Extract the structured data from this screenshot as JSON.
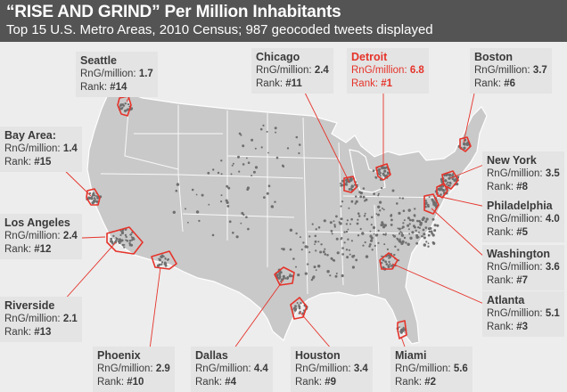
{
  "header": {
    "title": "“RISE AND GRIND” Per Million Inhabitants",
    "subtitle": "Top 15 U.S. Metro Areas, 2010 Census; 987 geocoded tweets displayed"
  },
  "labels": [
    {
      "id": "seattle",
      "city": "Seattle",
      "metric_label": "RnG/million:",
      "metric": "1.7",
      "rank_label": "Rank:",
      "rank": "#14"
    },
    {
      "id": "bay-area",
      "city": "Bay Area:",
      "metric_label": "RnG/million:",
      "metric": "1.4",
      "rank_label": "Rank:",
      "rank": "#15"
    },
    {
      "id": "los-angeles",
      "city": "Los Angeles",
      "metric_label": "RnG/million:",
      "metric": "2.4",
      "rank_label": "Rank:",
      "rank": "#12"
    },
    {
      "id": "riverside",
      "city": "Riverside",
      "metric_label": "RnG/million:",
      "metric": "2.1",
      "rank_label": "Rank:",
      "rank": "#13"
    },
    {
      "id": "phoenix",
      "city": "Phoenix",
      "metric_label": "RnG/million:",
      "metric": "2.9",
      "rank_label": "Rank:",
      "rank": "#10"
    },
    {
      "id": "dallas",
      "city": "Dallas",
      "metric_label": "RnG/million:",
      "metric": "4.4",
      "rank_label": "Rank:",
      "rank": "#4"
    },
    {
      "id": "houston",
      "city": "Houston",
      "metric_label": "RnG/million:",
      "metric": "3.4",
      "rank_label": "Rank:",
      "rank": "#9"
    },
    {
      "id": "miami",
      "city": "Miami",
      "metric_label": "RnG/million:",
      "metric": "5.6",
      "rank_label": "Rank:",
      "rank": "#2"
    },
    {
      "id": "atlanta",
      "city": "Atlanta",
      "metric_label": "RnG/million:",
      "metric": "5.1",
      "rank_label": "Rank:",
      "rank": "#3"
    },
    {
      "id": "washington",
      "city": "Washington",
      "metric_label": "RnG/million:",
      "metric": "3.6",
      "rank_label": "Rank:",
      "rank": "#7"
    },
    {
      "id": "philadelphia",
      "city": "Philadelphia",
      "metric_label": "RnG/million:",
      "metric": "4.0",
      "rank_label": "Rank:",
      "rank": "#5"
    },
    {
      "id": "new-york",
      "city": "New York",
      "metric_label": "RnG/million:",
      "metric": "3.5",
      "rank_label": "Rank:",
      "rank": "#8"
    },
    {
      "id": "boston",
      "city": "Boston",
      "metric_label": "RnG/million:",
      "metric": "3.7",
      "rank_label": "Rank:",
      "rank": "#6"
    },
    {
      "id": "detroit",
      "city": "Detroit",
      "metric_label": "RnG/million:",
      "metric": "6.8",
      "rank_label": "Rank:",
      "rank": "#1",
      "highlight": true
    },
    {
      "id": "chicago",
      "city": "Chicago",
      "metric_label": "RnG/million:",
      "metric": "2.4",
      "rank_label": "Rank:",
      "rank": "#11"
    }
  ],
  "colors": {
    "land": "#c9c9c9",
    "state_border": "#ffffff",
    "metro_outline": "#e5332a",
    "tweet_dot": "#6f6f6f",
    "leader_line": "#e5332a",
    "label_bg": "#e4e4e4",
    "highlight_text": "#e5332a",
    "header_bg": "#545454"
  }
}
